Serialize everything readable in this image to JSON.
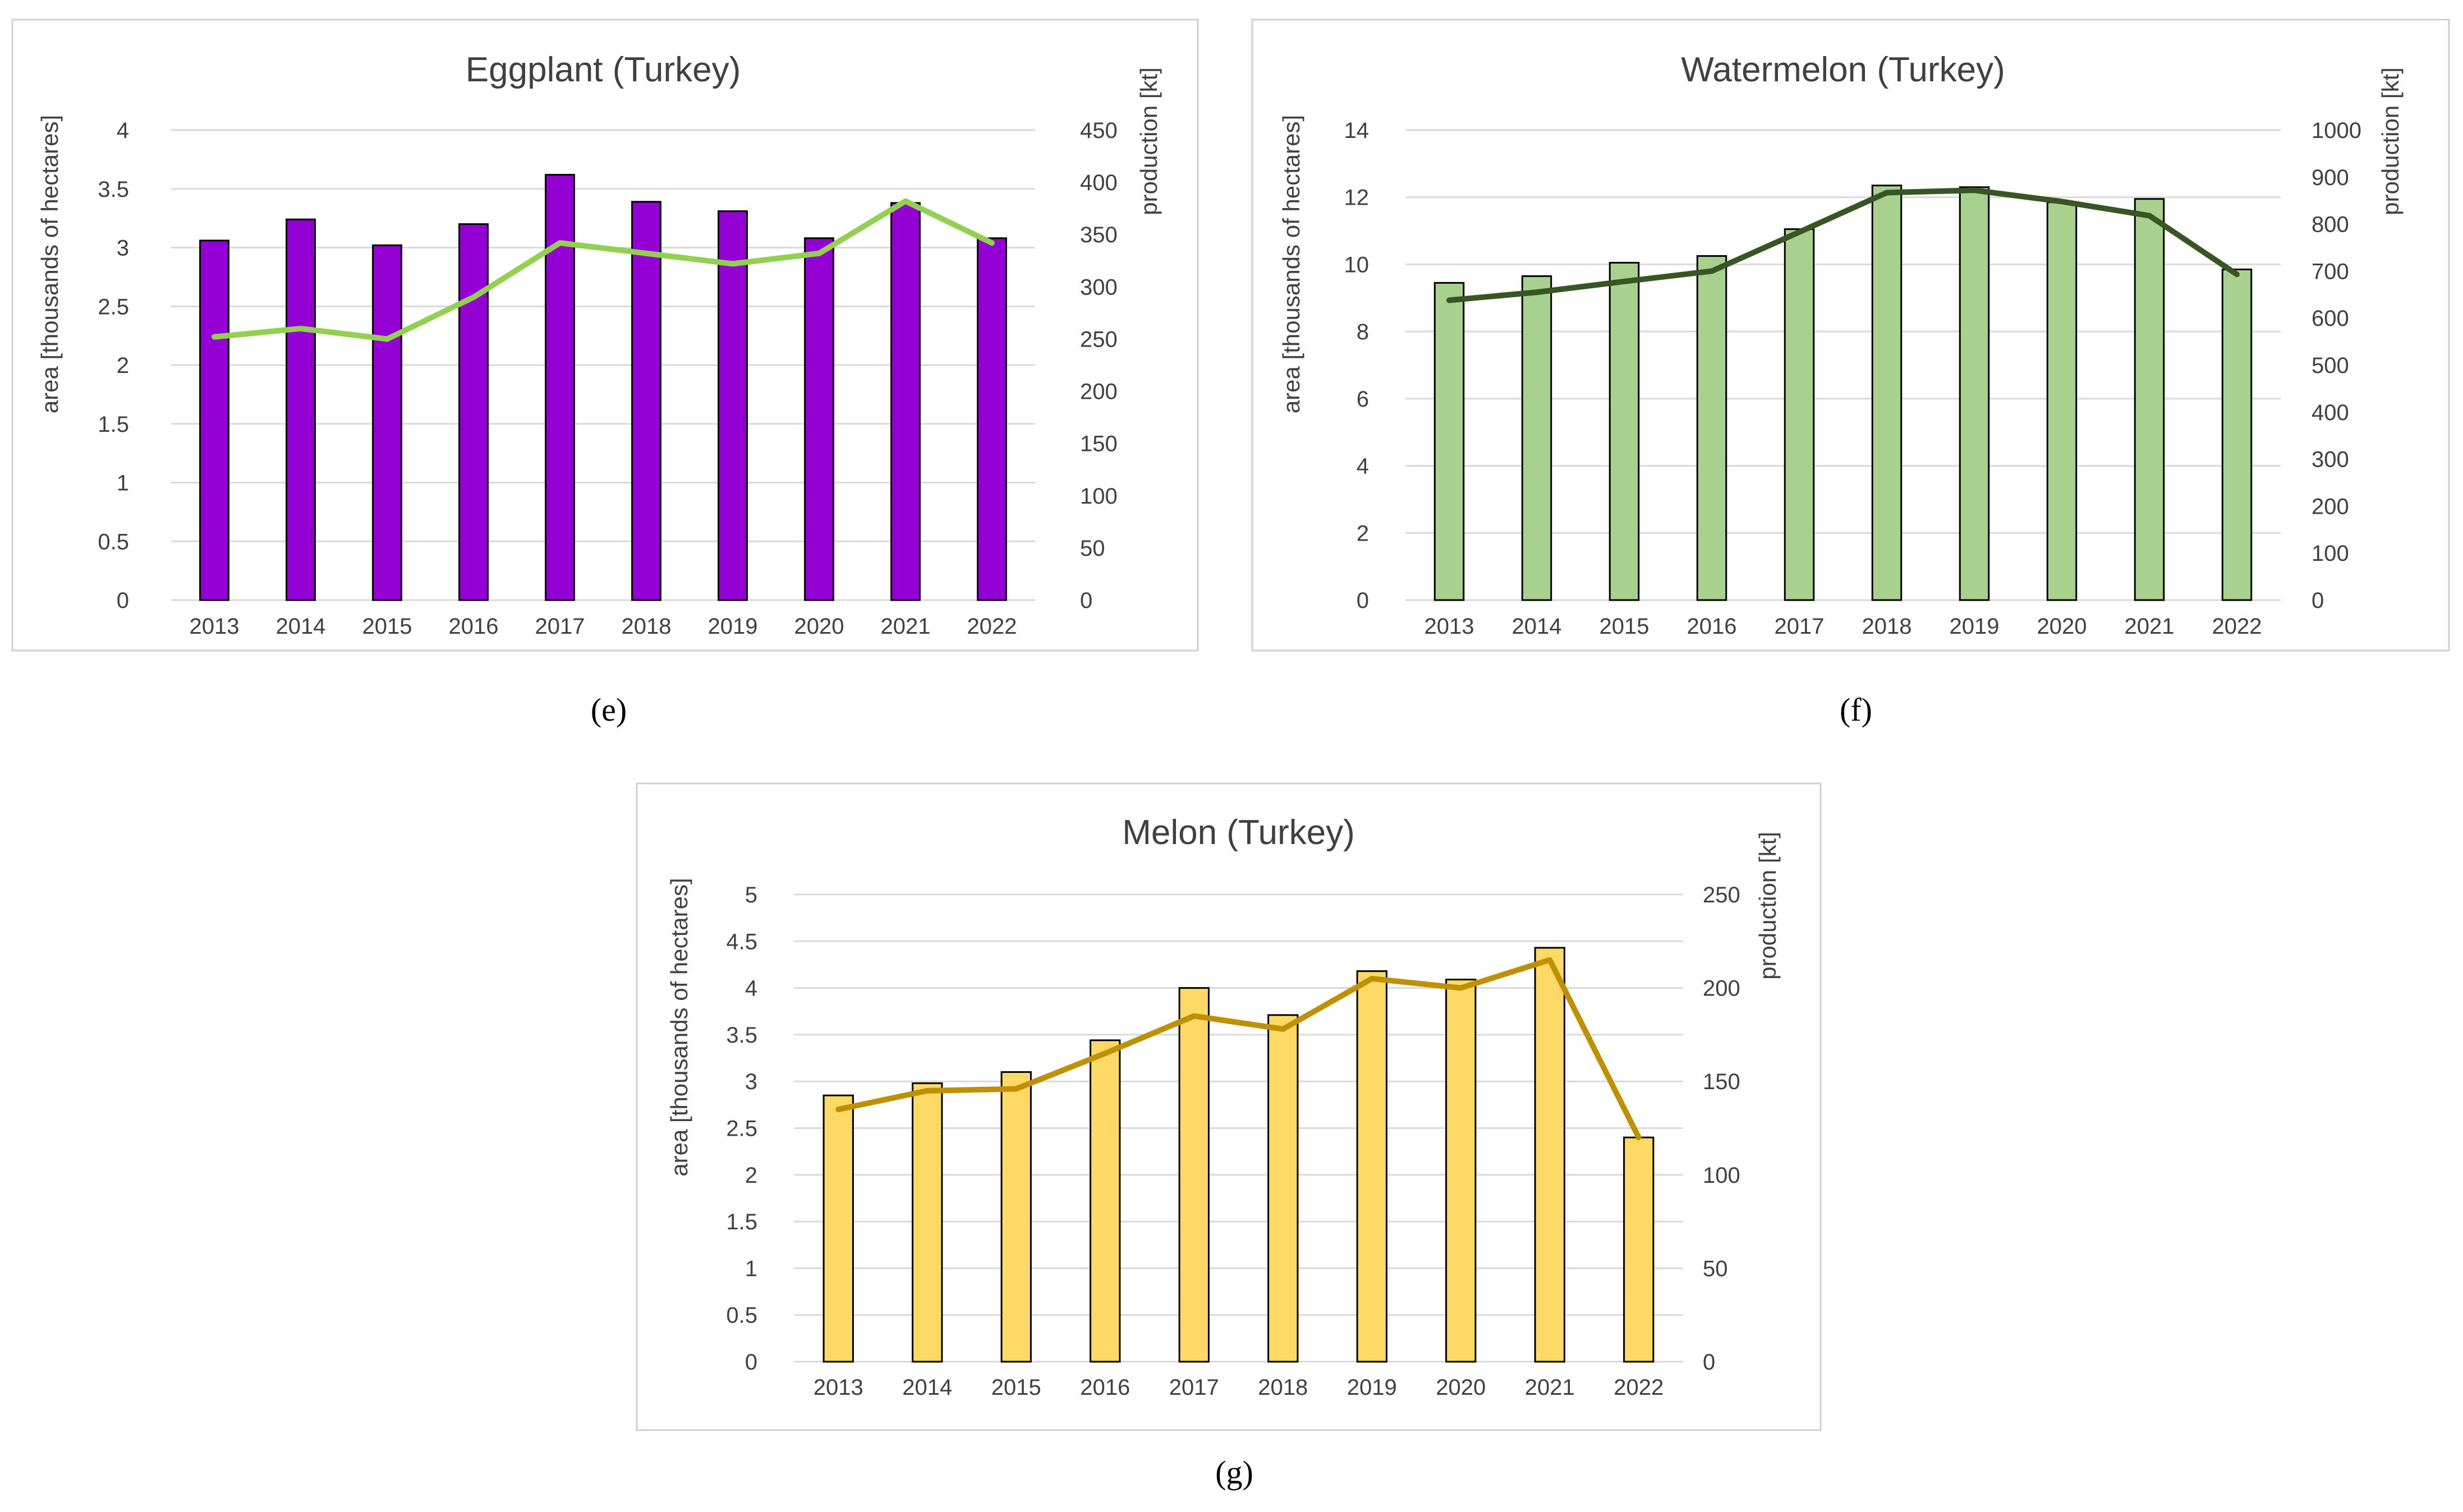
{
  "chart_data": [
    {
      "type": "bar",
      "title": "Eggplant (Turkey)",
      "caption": "(e)",
      "categories": [
        "2013",
        "2014",
        "2015",
        "2016",
        "2017",
        "2018",
        "2019",
        "2020",
        "2021",
        "2022"
      ],
      "ylabel": "area [thousands of hectares]",
      "y2label": "production [kt]",
      "ylim": [
        0,
        4
      ],
      "y_ticks": [
        "0",
        "0.5",
        "1",
        "1.5",
        "2",
        "2.5",
        "3",
        "3.5",
        "4"
      ],
      "y2lim": [
        0,
        450
      ],
      "y2_ticks": [
        "0",
        "50",
        "100",
        "150",
        "200",
        "250",
        "300",
        "350",
        "400",
        "450"
      ],
      "grid": true,
      "series": [
        {
          "kind": "bar",
          "axis": "left",
          "color": "#9400D3",
          "values": [
            3.06,
            3.24,
            3.02,
            3.2,
            3.62,
            3.39,
            3.31,
            3.08,
            3.38,
            3.08
          ]
        },
        {
          "kind": "line",
          "axis": "right",
          "color": "#92D050",
          "values": [
            252,
            260,
            250,
            290,
            342,
            332,
            322,
            332,
            382,
            342
          ]
        }
      ]
    },
    {
      "type": "bar",
      "title": "Watermelon (Turkey)",
      "caption": "(f)",
      "categories": [
        "2013",
        "2014",
        "2015",
        "2016",
        "2017",
        "2018",
        "2019",
        "2020",
        "2021",
        "2022"
      ],
      "ylabel": "area [thousands of hectares]",
      "y2label": "production [kt]",
      "ylim": [
        0,
        14
      ],
      "y_ticks": [
        "0",
        "2",
        "4",
        "6",
        "8",
        "10",
        "12",
        "14"
      ],
      "y2lim": [
        0,
        1000
      ],
      "y2_ticks": [
        "0",
        "100",
        "200",
        "300",
        "400",
        "500",
        "600",
        "700",
        "800",
        "900",
        "1000"
      ],
      "grid": true,
      "series": [
        {
          "kind": "bar",
          "axis": "left",
          "color": "#A9D18E",
          "values": [
            9.45,
            9.65,
            10.05,
            10.25,
            11.05,
            12.35,
            12.3,
            11.85,
            11.95,
            9.85
          ]
        },
        {
          "kind": "line",
          "axis": "right",
          "color": "#375623",
          "values": [
            638,
            655,
            678,
            700,
            783,
            867,
            872,
            848,
            818,
            693
          ]
        }
      ]
    },
    {
      "type": "bar",
      "title": "Melon (Turkey)",
      "caption": "(g)",
      "categories": [
        "2013",
        "2014",
        "2015",
        "2016",
        "2017",
        "2018",
        "2019",
        "2020",
        "2021",
        "2022"
      ],
      "ylabel": "area [thousands of hectares]",
      "y2label": "production [kt]",
      "ylim": [
        0,
        5
      ],
      "y_ticks": [
        "0",
        "0.5",
        "1",
        "1.5",
        "2",
        "2.5",
        "3",
        "3.5",
        "4",
        "4.5",
        "5"
      ],
      "y2lim": [
        0,
        250
      ],
      "y2_ticks": [
        "0",
        "50",
        "100",
        "150",
        "200",
        "250"
      ],
      "grid": true,
      "series": [
        {
          "kind": "bar",
          "axis": "left",
          "color": "#FFD966",
          "values": [
            2.85,
            2.98,
            3.1,
            3.44,
            4.0,
            3.71,
            4.18,
            4.09,
            4.43,
            2.4
          ]
        },
        {
          "kind": "line",
          "axis": "right",
          "color": "#BF9000",
          "values": [
            135,
            145,
            146,
            165,
            185,
            178,
            205,
            200,
            215,
            120
          ]
        }
      ]
    }
  ]
}
